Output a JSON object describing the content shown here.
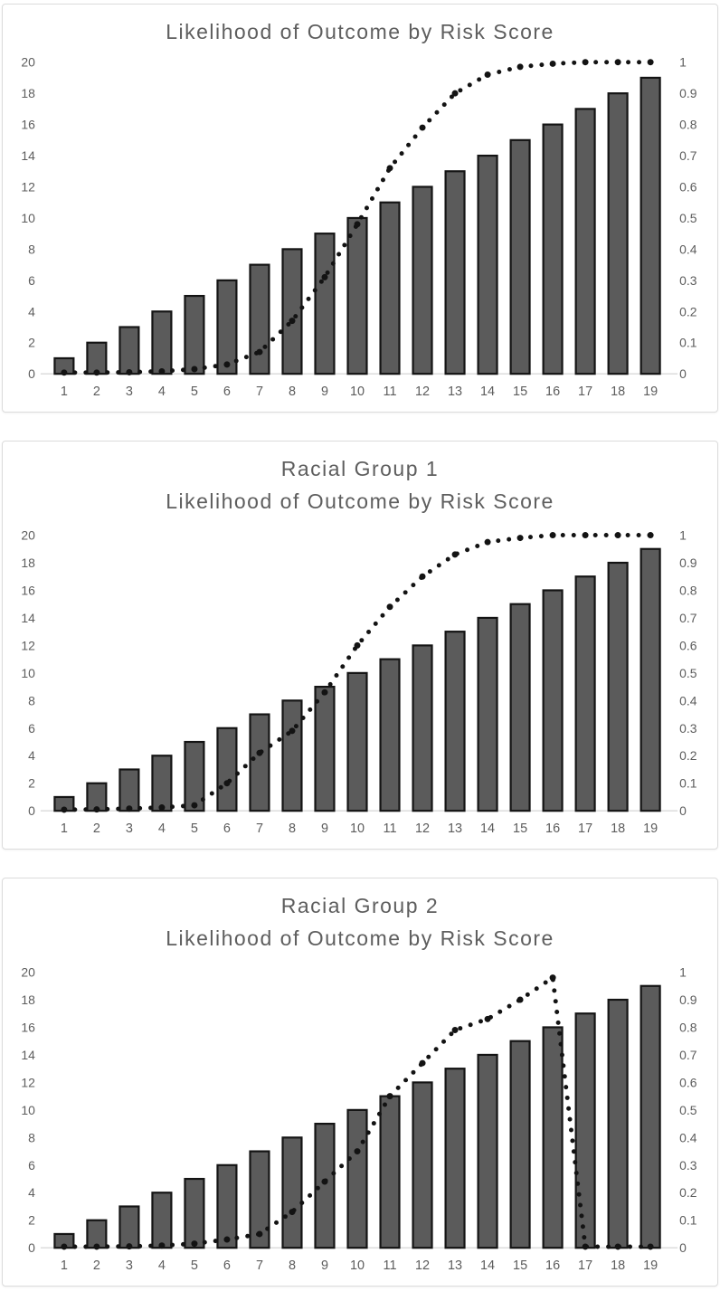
{
  "style": {
    "background": "#ffffff",
    "panel_border": "#dcdcdc",
    "title_color": "#5e5e5e",
    "axis_label_color": "#5d5d5d",
    "baseline_color": "#d9d9d9",
    "bar_fill": "#5b5b5b",
    "bar_stroke": "#141414",
    "dot_color": "#131313"
  },
  "chart_data": [
    {
      "type": "combo-bar-dotted-line",
      "title_line1": "Likelihood of Outcome by Risk Score",
      "categories": [
        "1",
        "2",
        "3",
        "4",
        "5",
        "6",
        "7",
        "8",
        "9",
        "10",
        "11",
        "12",
        "13",
        "14",
        "15",
        "16",
        "17",
        "18",
        "19"
      ],
      "series": [
        {
          "role": "bars",
          "axis": "left",
          "values": [
            1,
            2,
            3,
            4,
            5,
            6,
            7,
            8,
            9,
            10,
            11,
            12,
            13,
            14,
            15,
            16,
            17,
            18,
            19
          ]
        },
        {
          "role": "dotted-line",
          "axis": "right",
          "values": [
            0.004,
            0.004,
            0.005,
            0.008,
            0.015,
            0.03,
            0.07,
            0.17,
            0.31,
            0.48,
            0.66,
            0.79,
            0.9,
            0.96,
            0.985,
            0.995,
            1,
            1,
            1
          ]
        }
      ],
      "left_axis": {
        "min": 0,
        "max": 20,
        "tick_labels": [
          "0",
          "2",
          "4",
          "6",
          "8",
          "10",
          "12",
          "14",
          "16",
          "18",
          "20"
        ]
      },
      "right_axis": {
        "min": 0,
        "max": 1,
        "tick_labels": [
          "0",
          "0.1",
          "0.2",
          "0.3",
          "0.4",
          "0.5",
          "0.6",
          "0.7",
          "0.8",
          "0.9",
          "1"
        ]
      },
      "grid": false,
      "legend": false
    },
    {
      "type": "combo-bar-dotted-line",
      "title_line1": "Racial Group 1",
      "title_line2": "Likelihood of Outcome by Risk Score",
      "categories": [
        "1",
        "2",
        "3",
        "4",
        "5",
        "6",
        "7",
        "8",
        "9",
        "10",
        "11",
        "12",
        "13",
        "14",
        "15",
        "16",
        "17",
        "18",
        "19"
      ],
      "series": [
        {
          "role": "bars",
          "axis": "left",
          "values": [
            1,
            2,
            3,
            4,
            5,
            6,
            7,
            8,
            9,
            10,
            11,
            12,
            13,
            14,
            15,
            16,
            17,
            18,
            19
          ]
        },
        {
          "role": "dotted-line",
          "axis": "right",
          "values": [
            0.004,
            0.005,
            0.008,
            0.012,
            0.02,
            0.1,
            0.21,
            0.29,
            0.43,
            0.6,
            0.74,
            0.85,
            0.93,
            0.975,
            0.99,
            1,
            1,
            1,
            1
          ]
        }
      ],
      "left_axis": {
        "min": 0,
        "max": 20,
        "tick_labels": [
          "0",
          "2",
          "4",
          "6",
          "8",
          "10",
          "12",
          "14",
          "16",
          "18",
          "20"
        ]
      },
      "right_axis": {
        "min": 0,
        "max": 1,
        "tick_labels": [
          "0",
          "0.1",
          "0.2",
          "0.3",
          "0.4",
          "0.5",
          "0.6",
          "0.7",
          "0.8",
          "0.9",
          "1"
        ]
      },
      "grid": false,
      "legend": false
    },
    {
      "type": "combo-bar-dotted-line",
      "title_line1": "Racial Group 2",
      "title_line2": "Likelihood of Outcome by Risk Score",
      "categories": [
        "1",
        "2",
        "3",
        "4",
        "5",
        "6",
        "7",
        "8",
        "9",
        "10",
        "11",
        "12",
        "13",
        "14",
        "15",
        "16",
        "17",
        "18",
        "19"
      ],
      "series": [
        {
          "role": "bars",
          "axis": "left",
          "values": [
            1,
            2,
            3,
            4,
            5,
            6,
            7,
            8,
            9,
            10,
            11,
            12,
            13,
            14,
            15,
            16,
            17,
            18,
            19
          ]
        },
        {
          "role": "dotted-line",
          "axis": "right",
          "values": [
            0.004,
            0.004,
            0.005,
            0.008,
            0.015,
            0.03,
            0.05,
            0.13,
            0.24,
            0.35,
            0.55,
            0.67,
            0.79,
            0.83,
            0.9,
            0.98,
            0.004,
            0.004,
            0.004
          ]
        }
      ],
      "left_axis": {
        "min": 0,
        "max": 20,
        "tick_labels": [
          "0",
          "2",
          "4",
          "6",
          "8",
          "10",
          "12",
          "14",
          "16",
          "18",
          "20"
        ]
      },
      "right_axis": {
        "min": 0,
        "max": 1,
        "tick_labels": [
          "0",
          "0.1",
          "0.2",
          "0.3",
          "0.4",
          "0.5",
          "0.6",
          "0.7",
          "0.8",
          "0.9",
          "1"
        ]
      },
      "grid": false,
      "legend": false
    }
  ]
}
